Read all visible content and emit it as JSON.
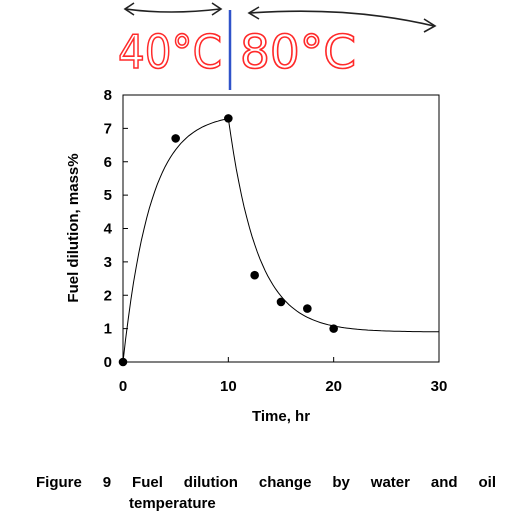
{
  "chart_data": {
    "type": "scatter",
    "title": "",
    "xlabel": "Time, hr",
    "ylabel": "Fuel dilution, mass%",
    "xlim": [
      0,
      30
    ],
    "ylim": [
      0,
      8
    ],
    "xticks": [
      0,
      10,
      20,
      30
    ],
    "yticks": [
      0,
      1,
      2,
      3,
      4,
      5,
      6,
      7,
      8
    ],
    "grid": false,
    "series": [
      {
        "marker": "filled-circle",
        "x": [
          0,
          5,
          10,
          12.5,
          15,
          17.5,
          20
        ],
        "y": [
          0,
          6.7,
          7.3,
          2.6,
          1.8,
          1.6,
          1.0
        ]
      }
    ],
    "annotations": [
      {
        "text": "40°C",
        "x_range": [
          0,
          10
        ],
        "arrow": "double-headed",
        "color": "#ff2a2a"
      },
      {
        "text": "80°C",
        "x_range": [
          10,
          30
        ],
        "arrow": "double-headed",
        "color": "#ff2a2a"
      }
    ],
    "divider_color": "#2f52c9"
  },
  "caption": {
    "line1": "Figure 9 Fuel dilution change by water and oil",
    "line2": "temperature"
  }
}
